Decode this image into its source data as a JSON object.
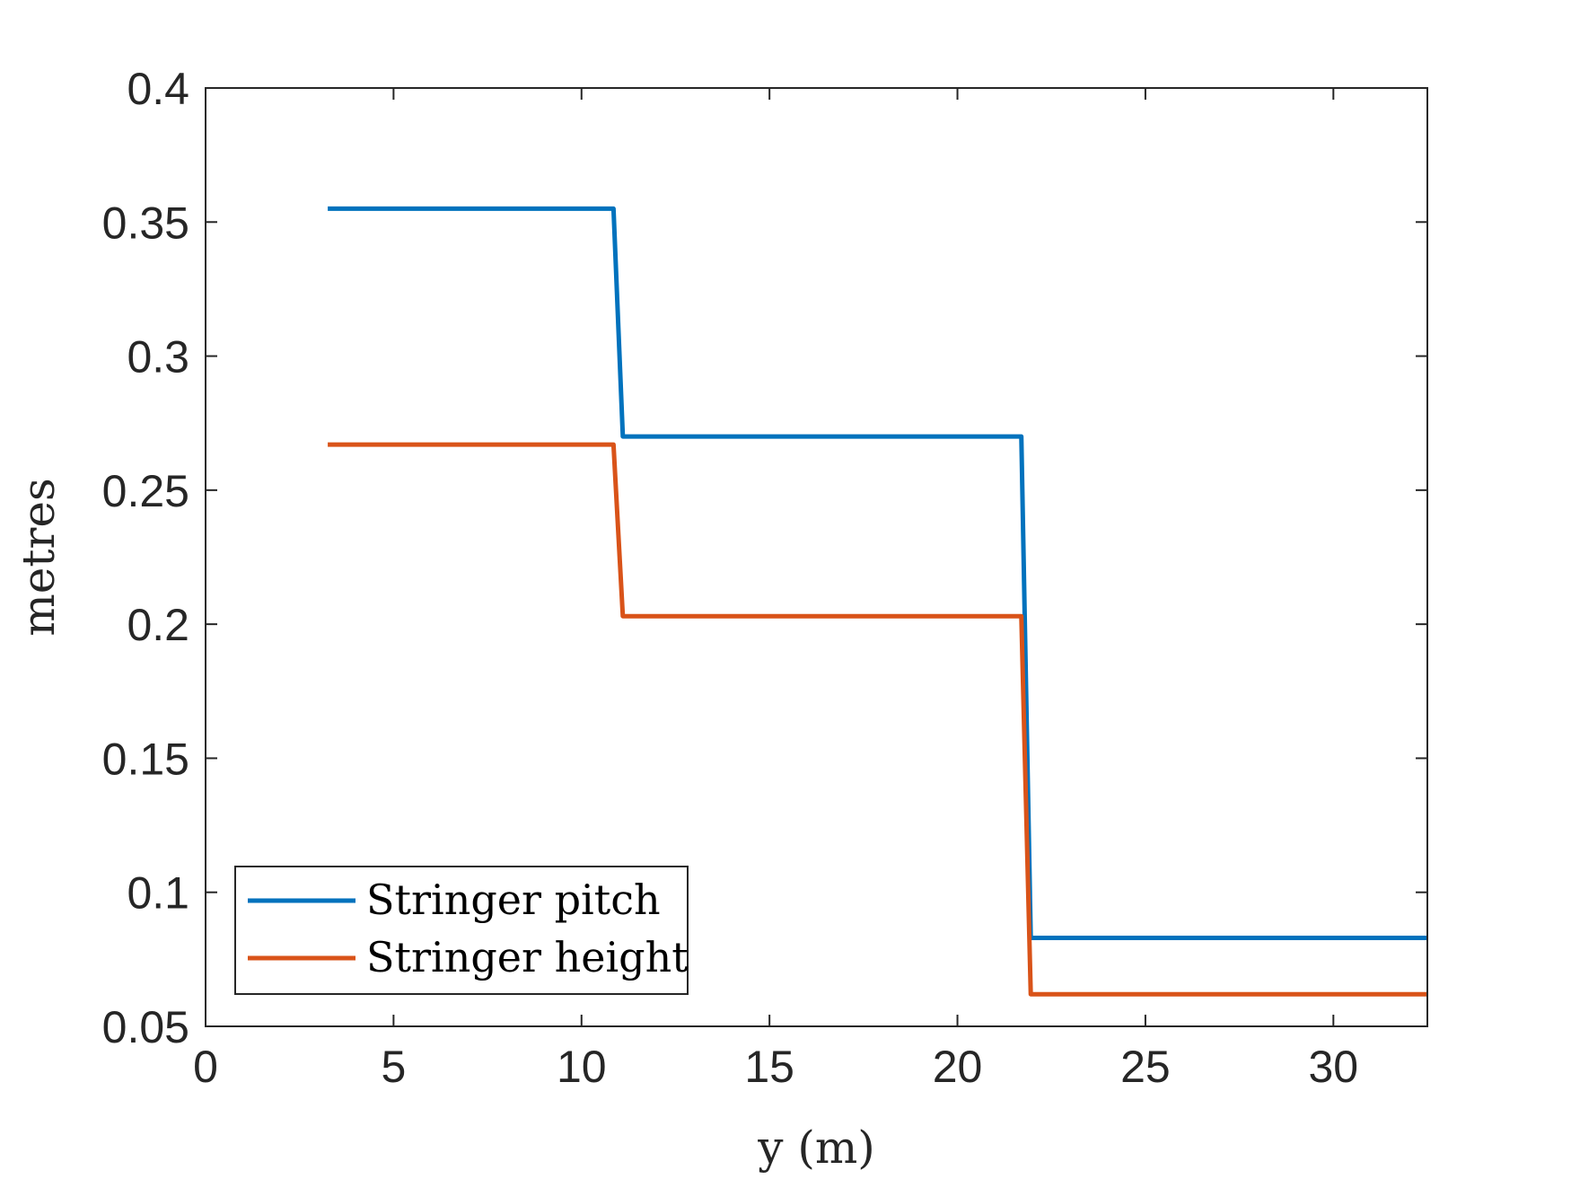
{
  "chart_data": {
    "type": "line",
    "xlabel": "y (m)",
    "ylabel": "metres",
    "xlim": [
      0,
      32.5
    ],
    "ylim": [
      0.05,
      0.4
    ],
    "xticks": [
      0,
      5,
      10,
      15,
      20,
      25,
      30
    ],
    "yticks": [
      0.05,
      0.1,
      0.15,
      0.2,
      0.25,
      0.3,
      0.35,
      0.4
    ],
    "xtick_labels": [
      "0",
      "5",
      "10",
      "15",
      "20",
      "25",
      "30"
    ],
    "ytick_labels": [
      "0.05",
      "0.1",
      "0.15",
      "0.2",
      "0.25",
      "0.3",
      "0.35",
      "0.4"
    ],
    "grid": false,
    "box": true,
    "legend_position": "bottom-left",
    "series": [
      {
        "name": "Stringer pitch",
        "color": "#0072BD",
        "x": [
          3.25,
          10.85,
          11.1,
          21.7,
          21.95,
          32.5
        ],
        "y": [
          0.355,
          0.355,
          0.27,
          0.27,
          0.083,
          0.083
        ]
      },
      {
        "name": "Stringer height",
        "color": "#D95319",
        "x": [
          3.25,
          10.85,
          11.1,
          21.7,
          21.95,
          32.5
        ],
        "y": [
          0.267,
          0.267,
          0.203,
          0.203,
          0.062,
          0.062
        ]
      }
    ]
  }
}
